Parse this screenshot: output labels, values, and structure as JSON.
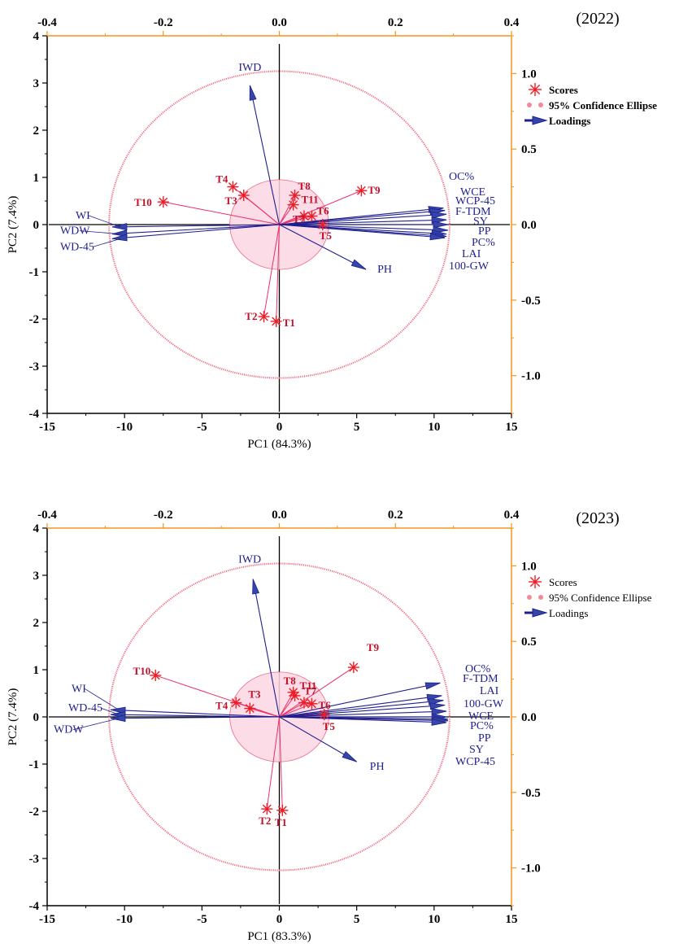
{
  "chart_data": [
    {
      "type": "scatter",
      "subtitle": "(2022)",
      "xlabel": "PC1 (84.3%)",
      "ylabel": "PC2 (7.4%)",
      "xlim": [
        -15,
        15
      ],
      "ylim": [
        -4,
        4
      ],
      "top_xlim": [
        -0.4,
        0.4
      ],
      "right_ylim": [
        -1.25,
        1.25
      ],
      "x_ticks": [
        "-15",
        "-10",
        "-5",
        "0",
        "5",
        "10",
        "15"
      ],
      "y_ticks": [
        "-4",
        "-3",
        "-2",
        "-1",
        "0",
        "1",
        "2",
        "3",
        "4"
      ],
      "top_ticks": [
        "-0.4",
        "-0.2",
        "0.0",
        "0.2",
        "0.4"
      ],
      "right_ticks": [
        "-1.0",
        "-0.5",
        "0.0",
        "0.5",
        "1.0"
      ],
      "legend": [
        "Scores",
        "95% Confidence Ellipse",
        "Loadings"
      ],
      "legend_bold": true,
      "ellipse": {
        "rx": 11,
        "ry": 3.25
      },
      "inner_ellipse": {
        "rx": 3.2,
        "ry": 0.95
      },
      "scores": [
        {
          "label": "T1",
          "x": -0.2,
          "y": -2.05
        },
        {
          "label": "T2",
          "x": -1.0,
          "y": -1.95
        },
        {
          "label": "T3",
          "x": -2.3,
          "y": 0.62
        },
        {
          "label": "T4",
          "x": -3.0,
          "y": 0.8
        },
        {
          "label": "T5",
          "x": 2.8,
          "y": 0.0
        },
        {
          "label": "T6",
          "x": 2.1,
          "y": 0.18
        },
        {
          "label": "T7",
          "x": 1.6,
          "y": 0.18
        },
        {
          "label": "T8",
          "x": 1.0,
          "y": 0.62
        },
        {
          "label": "T9",
          "x": 5.3,
          "y": 0.72
        },
        {
          "label": "T10",
          "x": -7.5,
          "y": 0.48
        },
        {
          "label": "T11",
          "x": 0.9,
          "y": 0.42
        }
      ],
      "loadings": [
        {
          "label": "IWD",
          "x": -1.9,
          "y": 2.95
        },
        {
          "label": "PH",
          "x": 5.6,
          "y": -0.95
        },
        {
          "label": "WI",
          "x": -10.8,
          "y": -0.05
        },
        {
          "label": "WDW",
          "x": -10.8,
          "y": -0.2
        },
        {
          "label": "WD-45",
          "x": -10.8,
          "y": -0.3
        },
        {
          "label": "OC%",
          "x": 10.6,
          "y": 0.35
        },
        {
          "label": "WCE",
          "x": 10.7,
          "y": 0.3
        },
        {
          "label": "WCP-45",
          "x": 10.8,
          "y": 0.22
        },
        {
          "label": "F-TDM",
          "x": 10.8,
          "y": 0.1
        },
        {
          "label": "SY",
          "x": 10.9,
          "y": 0.0
        },
        {
          "label": "PP",
          "x": 10.9,
          "y": -0.12
        },
        {
          "label": "PC%",
          "x": 10.8,
          "y": -0.2
        },
        {
          "label": "LAI",
          "x": 10.8,
          "y": -0.25
        },
        {
          "label": "100-GW",
          "x": 10.7,
          "y": -0.28
        }
      ]
    },
    {
      "type": "scatter",
      "subtitle": "(2023)",
      "xlabel": "PC1 (83.3%)",
      "ylabel": "PC2 (7.4%)",
      "xlim": [
        -15,
        15
      ],
      "ylim": [
        -4,
        4
      ],
      "top_xlim": [
        -0.4,
        0.4
      ],
      "right_ylim": [
        -1.25,
        1.25
      ],
      "x_ticks": [
        "-15",
        "-10",
        "-5",
        "0",
        "5",
        "10",
        "15"
      ],
      "y_ticks": [
        "-4",
        "-3",
        "-2",
        "-1",
        "0",
        "1",
        "2",
        "3",
        "4"
      ],
      "top_ticks": [
        "-0.4",
        "-0.2",
        "0.0",
        "0.2",
        "0.4"
      ],
      "right_ticks": [
        "-1.0",
        "-0.5",
        "0.0",
        "0.5",
        "1.0"
      ],
      "legend": [
        "Scores",
        "95% Confidence Ellipse",
        "Loadings"
      ],
      "legend_bold": false,
      "ellipse": {
        "rx": 11,
        "ry": 3.25
      },
      "inner_ellipse": {
        "rx": 3.2,
        "ry": 0.95
      },
      "scores": [
        {
          "label": "T1",
          "x": 0.2,
          "y": -1.98
        },
        {
          "label": "T2",
          "x": -0.8,
          "y": -1.95
        },
        {
          "label": "T3",
          "x": -1.9,
          "y": 0.18
        },
        {
          "label": "T4",
          "x": -2.8,
          "y": 0.3
        },
        {
          "label": "T5",
          "x": 2.9,
          "y": 0.05
        },
        {
          "label": "T6",
          "x": 2.1,
          "y": 0.28
        },
        {
          "label": "T7",
          "x": 1.6,
          "y": 0.3
        },
        {
          "label": "T8",
          "x": 0.9,
          "y": 0.52
        },
        {
          "label": "T9",
          "x": 4.8,
          "y": 1.05
        },
        {
          "label": "T10",
          "x": -8.0,
          "y": 0.88
        },
        {
          "label": "T11",
          "x": 1.0,
          "y": 0.45
        }
      ],
      "loadings": [
        {
          "label": "IWD",
          "x": -1.7,
          "y": 2.92
        },
        {
          "label": "PH",
          "x": 5.0,
          "y": -0.95
        },
        {
          "label": "WI",
          "x": -10.9,
          "y": 0.15
        },
        {
          "label": "WD-45",
          "x": -10.9,
          "y": 0.05
        },
        {
          "label": "WDW",
          "x": -10.9,
          "y": -0.03
        },
        {
          "label": "OC%",
          "x": 10.4,
          "y": 0.72
        },
        {
          "label": "F-TDM",
          "x": 10.5,
          "y": 0.45
        },
        {
          "label": "LAI",
          "x": 10.6,
          "y": 0.35
        },
        {
          "label": "100-GW",
          "x": 10.7,
          "y": 0.25
        },
        {
          "label": "WCE",
          "x": 10.8,
          "y": 0.12
        },
        {
          "label": "PC%",
          "x": 10.8,
          "y": 0.0
        },
        {
          "label": "PP",
          "x": 10.9,
          "y": -0.05
        },
        {
          "label": "SY",
          "x": 10.9,
          "y": -0.08
        },
        {
          "label": "WCP-45",
          "x": 10.8,
          "y": -0.12
        }
      ]
    }
  ]
}
